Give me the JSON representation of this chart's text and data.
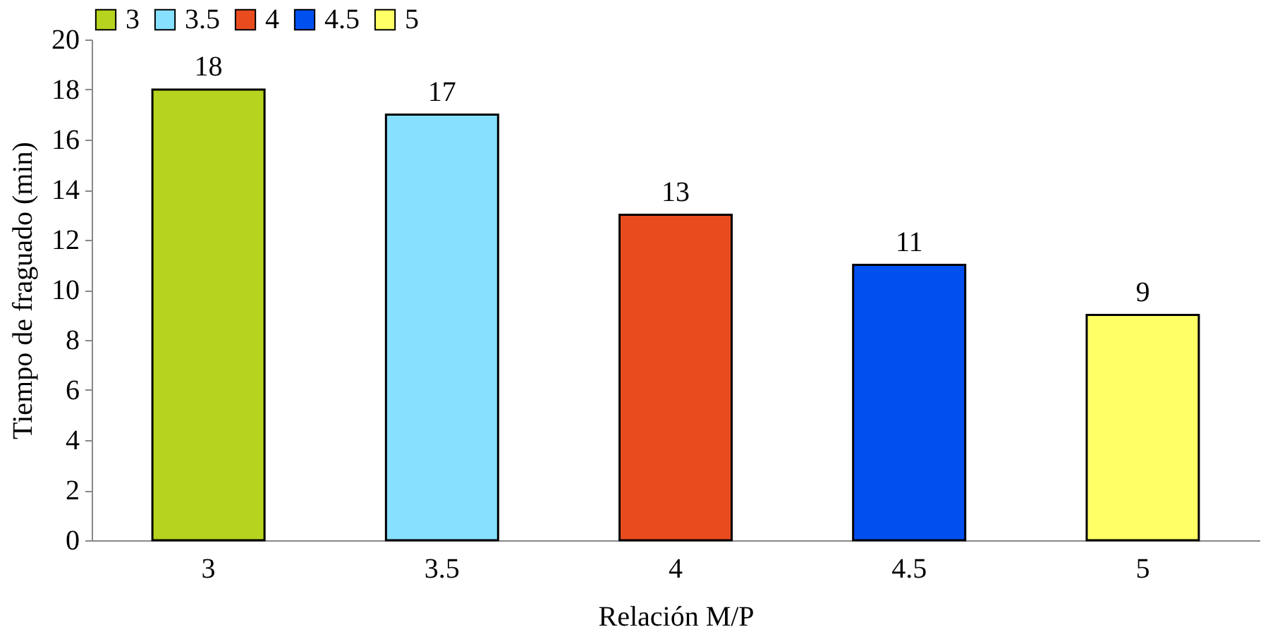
{
  "chart_data": {
    "type": "bar",
    "xlabel": "Relación M/P",
    "ylabel": "Tiempo de fraguado (min)",
    "categories": [
      "3",
      "3.5",
      "4",
      "4.5",
      "5"
    ],
    "stacked": true,
    "series": [
      {
        "name": "3",
        "color": "#b5d31f",
        "values": [
          18,
          null,
          null,
          null,
          null
        ]
      },
      {
        "name": "3.5",
        "color": "#87e0ff",
        "values": [
          null,
          17,
          null,
          null,
          null
        ]
      },
      {
        "name": "4",
        "color": "#e84c1e",
        "values": [
          null,
          null,
          13,
          null,
          null
        ]
      },
      {
        "name": "4.5",
        "color": "#0050ef",
        "values": [
          null,
          null,
          null,
          11,
          null
        ]
      },
      {
        "name": "5",
        "color": "#ffff66",
        "values": [
          null,
          null,
          null,
          null,
          9
        ]
      }
    ],
    "ylim": [
      0,
      20
    ],
    "yticks": [
      0,
      2,
      4,
      6,
      8,
      10,
      12,
      14,
      16,
      18,
      20
    ],
    "data_labels": true,
    "legend": "top"
  }
}
